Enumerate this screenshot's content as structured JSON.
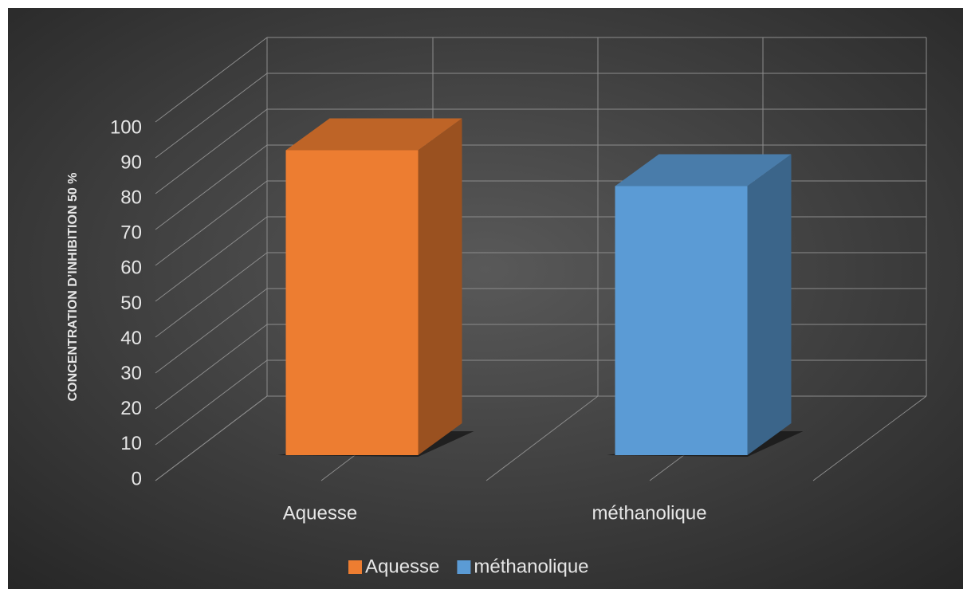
{
  "chart_data": {
    "type": "bar3d",
    "y_label": "CONCENTRATION D’INHIBITION 50 %",
    "categories": [
      "Aquesse",
      "méthanolique"
    ],
    "series": [
      {
        "name": "Aquesse",
        "color": "#ed7d31",
        "values": [
          85,
          null
        ]
      },
      {
        "name": "méthanolique",
        "color": "#5b9bd5",
        "values": [
          null,
          75
        ]
      }
    ],
    "ylim": [
      0,
      100
    ],
    "yticks": [
      0,
      10,
      20,
      30,
      40,
      50,
      60,
      70,
      80,
      90,
      100
    ],
    "grid": true,
    "legend": "bottom"
  }
}
